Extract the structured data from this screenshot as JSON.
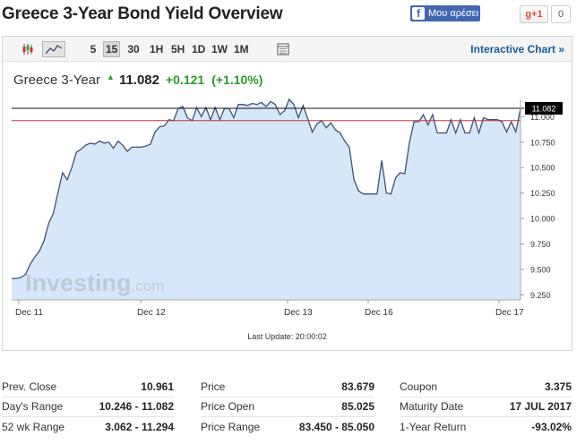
{
  "page": {
    "title": "Greece 3-Year Bond Yield Overview"
  },
  "social": {
    "facebook_label": "Μου αρέσει",
    "gplus_label": "g+1",
    "gplus_count": "0"
  },
  "toolbar": {
    "timeframes": [
      "5",
      "15",
      "30",
      "1H",
      "5H",
      "1D",
      "1W",
      "1M"
    ],
    "active_timeframe": "15",
    "interactive_link": "Interactive Chart »"
  },
  "quote": {
    "name": "Greece 3-Year",
    "last": "11.082",
    "change": "+0.121",
    "change_pct": "(+1.10%)"
  },
  "chart": {
    "last_update": "Last Update: 20:00:02",
    "current_label": "11.082",
    "watermark": "Investing.com",
    "colors": {
      "line": "#3d5375",
      "fill": "#d6e7fa",
      "prev_close": "#cc3333",
      "current": "#111111"
    }
  },
  "chart_data": {
    "type": "area",
    "x_tick_labels": [
      "Dec 11",
      "Dec 12",
      "Dec 13",
      "Dec 16",
      "Dec 17"
    ],
    "y_tick_labels": [
      "11.000",
      "10.750",
      "10.500",
      "10.250",
      "10.000",
      "9.750",
      "9.500",
      "9.250"
    ],
    "ylim": [
      9.2,
      11.17
    ],
    "prev_close": 10.961,
    "current": 11.082,
    "values": [
      9.41,
      9.41,
      9.42,
      9.45,
      9.55,
      9.62,
      9.68,
      9.78,
      9.95,
      10.05,
      10.25,
      10.45,
      10.38,
      10.5,
      10.65,
      10.68,
      10.72,
      10.74,
      10.73,
      10.76,
      10.74,
      10.75,
      10.69,
      10.76,
      10.72,
      10.66,
      10.7,
      10.7,
      10.7,
      10.71,
      10.73,
      10.85,
      10.9,
      10.91,
      10.97,
      10.96,
      11.08,
      11.1,
      10.99,
      10.96,
      11.09,
      11.0,
      11.09,
      10.97,
      11.09,
      10.97,
      11.08,
      11.08,
      10.99,
      11.12,
      11.12,
      11.11,
      11.13,
      11.12,
      11.14,
      11.1,
      11.15,
      11.12,
      11.02,
      11.06,
      11.17,
      11.12,
      10.99,
      11.11,
      10.98,
      10.85,
      10.93,
      10.96,
      10.89,
      10.94,
      10.87,
      10.84,
      10.76,
      10.7,
      10.38,
      10.27,
      10.24,
      10.24,
      10.24,
      10.24,
      10.57,
      10.25,
      10.24,
      10.4,
      10.45,
      10.44,
      10.75,
      10.95,
      10.95,
      11.02,
      10.92,
      11.02,
      10.84,
      10.84,
      10.84,
      10.97,
      10.84,
      10.97,
      10.84,
      10.84,
      10.99,
      10.84,
      10.99,
      10.97,
      10.97,
      10.97,
      10.95,
      10.85,
      10.95,
      10.85,
      11.08
    ]
  },
  "stats": {
    "col1": [
      {
        "label": "Prev. Close",
        "value": "10.961"
      },
      {
        "label": "Day's Range",
        "value": "10.246 - 11.082"
      },
      {
        "label": "52 wk Range",
        "value": "3.062 - 11.294"
      }
    ],
    "col2": [
      {
        "label": "Price",
        "value": "83.679"
      },
      {
        "label": "Price Open",
        "value": "85.025"
      },
      {
        "label": "Price Range",
        "value": "83.450 - 85.050"
      }
    ],
    "col3": [
      {
        "label": "Coupon",
        "value": "3.375"
      },
      {
        "label": "Maturity Date",
        "value": "17 JUL 2017"
      },
      {
        "label": "1-Year Return",
        "value": "-93.02%"
      }
    ]
  }
}
